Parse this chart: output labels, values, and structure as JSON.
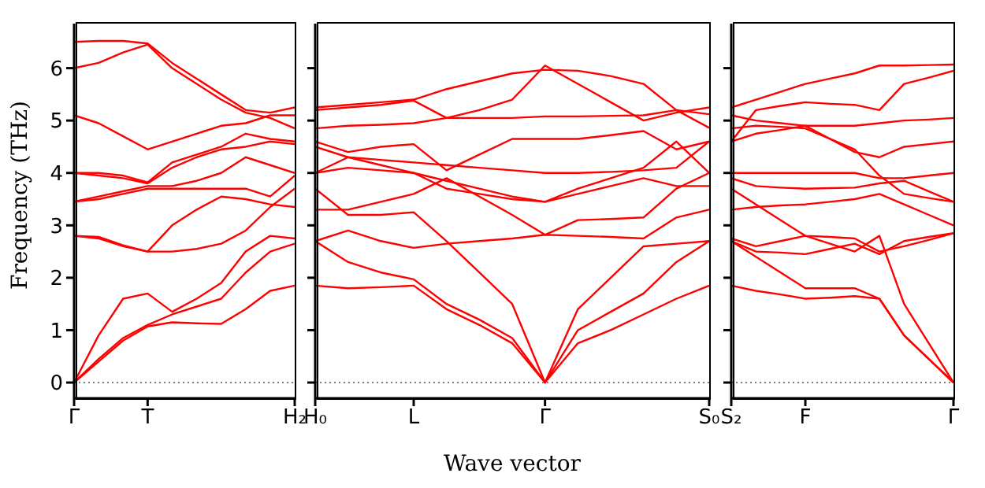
{
  "chart_data": [
    {
      "type": "line",
      "ylabel": "Frequency (THz)",
      "categories": [
        "Γ",
        null,
        null,
        "T",
        null,
        null,
        null,
        null,
        null,
        "H₂"
      ],
      "ylim": [
        -0.3,
        6.85
      ],
      "yticks": [
        0,
        1,
        2,
        3,
        4,
        5,
        6
      ],
      "grid": false,
      "legend": false,
      "marker": "none",
      "line_style": "solid",
      "ref_lines": [
        {
          "axis": "y",
          "value": 0,
          "color": "#555555",
          "line_style": "dotted"
        }
      ],
      "series": [
        {
          "color": "#ff0000",
          "values": [
            0,
            0.4,
            0.8,
            1.07,
            1.15,
            1.13,
            1.12,
            1.4,
            1.75,
            1.85
          ]
        },
        {
          "color": "#ff0000",
          "values": [
            0,
            0.45,
            0.85,
            1.1,
            1.3,
            1.45,
            1.6,
            2.1,
            2.5,
            2.65
          ]
        },
        {
          "color": "#ff0000",
          "values": [
            0,
            0.9,
            1.6,
            1.7,
            1.35,
            1.6,
            1.9,
            2.5,
            2.8,
            2.75
          ]
        },
        {
          "color": "#ff0000",
          "values": [
            2.8,
            2.75,
            2.6,
            2.5,
            2.5,
            2.55,
            2.65,
            2.9,
            3.35,
            3.7
          ]
        },
        {
          "color": "#ff0000",
          "values": [
            2.8,
            2.78,
            2.62,
            2.5,
            3.0,
            3.3,
            3.55,
            3.5,
            3.4,
            3.35
          ]
        },
        {
          "color": "#ff0000",
          "values": [
            3.45,
            3.5,
            3.6,
            3.7,
            3.7,
            3.7,
            3.7,
            3.7,
            3.55,
            3.95
          ]
        },
        {
          "color": "#ff0000",
          "values": [
            3.45,
            3.55,
            3.65,
            3.75,
            3.75,
            3.85,
            4.0,
            4.3,
            4.15,
            4.0
          ]
        },
        {
          "color": "#ff0000",
          "values": [
            4.0,
            3.95,
            3.9,
            3.8,
            4.1,
            4.3,
            4.45,
            4.5,
            4.6,
            4.55
          ]
        },
        {
          "color": "#ff0000",
          "values": [
            4.0,
            4.0,
            3.95,
            3.82,
            4.2,
            4.35,
            4.5,
            4.75,
            4.65,
            4.6
          ]
        },
        {
          "color": "#ff0000",
          "values": [
            5.1,
            4.95,
            4.7,
            4.45,
            4.6,
            4.75,
            4.9,
            4.95,
            5.1,
            5.1
          ]
        },
        {
          "color": "#ff0000",
          "values": [
            6.0,
            6.1,
            6.3,
            6.45,
            6.0,
            5.7,
            5.4,
            5.15,
            5.05,
            4.85
          ]
        },
        {
          "color": "#ff0000",
          "values": [
            6.5,
            6.52,
            6.52,
            6.47,
            6.1,
            5.8,
            5.5,
            5.2,
            5.15,
            5.25
          ]
        }
      ]
    },
    {
      "type": "line",
      "xlabel": "Wave vector",
      "categories": [
        "H₀",
        null,
        null,
        "L",
        null,
        null,
        null,
        "Γ",
        null,
        null,
        null,
        null,
        "S₀"
      ],
      "ylim": [
        -0.3,
        6.85
      ],
      "yticks": [
        {
          "value": 0,
          "label": null
        },
        {
          "value": 1,
          "label": null
        },
        {
          "value": 2,
          "label": null
        },
        {
          "value": 3,
          "label": null
        },
        {
          "value": 4,
          "label": null
        },
        {
          "value": 5,
          "label": null
        },
        {
          "value": 6,
          "label": null
        }
      ],
      "tick_labels": "x",
      "grid": false,
      "legend": false,
      "marker": "none",
      "line_style": "solid",
      "ref_lines": [
        {
          "axis": "y",
          "value": 0,
          "color": "#555555",
          "line_style": "dotted"
        }
      ],
      "series": [
        {
          "color": "#ff0000",
          "values": [
            1.85,
            1.8,
            1.82,
            1.85,
            1.4,
            1.1,
            0.75,
            0,
            0.75,
            1.0,
            1.3,
            1.6,
            1.85
          ]
        },
        {
          "color": "#ff0000",
          "values": [
            2.7,
            2.3,
            2.1,
            1.97,
            1.5,
            1.2,
            0.85,
            0,
            1.0,
            1.35,
            1.7,
            2.3,
            2.7
          ]
        },
        {
          "color": "#ff0000",
          "values": [
            3.7,
            3.2,
            3.2,
            3.25,
            2.7,
            2.1,
            1.5,
            0,
            1.4,
            2.0,
            2.6,
            2.65,
            2.7
          ]
        },
        {
          "color": "#ff0000",
          "values": [
            2.7,
            2.9,
            2.7,
            2.57,
            2.65,
            2.7,
            2.75,
            2.82,
            2.8,
            2.78,
            2.75,
            3.15,
            3.3
          ]
        },
        {
          "color": "#ff0000",
          "values": [
            3.3,
            3.3,
            3.45,
            3.6,
            3.9,
            3.55,
            3.2,
            2.82,
            3.1,
            3.12,
            3.15,
            3.7,
            4.0
          ]
        },
        {
          "color": "#ff0000",
          "values": [
            4.0,
            4.3,
            4.15,
            4.0,
            3.7,
            3.6,
            3.5,
            3.45,
            3.7,
            3.9,
            4.1,
            4.6,
            4.0
          ]
        },
        {
          "color": "#ff0000",
          "values": [
            4.0,
            4.1,
            4.05,
            4.0,
            3.85,
            3.7,
            3.55,
            3.45,
            3.6,
            3.75,
            3.9,
            3.75,
            3.75
          ]
        },
        {
          "color": "#ff0000",
          "values": [
            4.5,
            4.3,
            4.25,
            4.2,
            4.15,
            4.1,
            4.05,
            4.0,
            4.0,
            4.02,
            4.05,
            4.1,
            4.6
          ]
        },
        {
          "color": "#ff0000",
          "values": [
            4.6,
            4.4,
            4.5,
            4.55,
            4.05,
            4.35,
            4.65,
            4.65,
            4.65,
            4.72,
            4.8,
            4.45,
            4.6
          ]
        },
        {
          "color": "#ff0000",
          "values": [
            4.85,
            4.9,
            4.92,
            4.95,
            5.05,
            5.05,
            5.05,
            5.08,
            5.08,
            5.09,
            5.1,
            5.2,
            5.12
          ]
        },
        {
          "color": "#ff0000",
          "values": [
            5.2,
            5.25,
            5.3,
            5.38,
            5.05,
            5.2,
            5.4,
            6.05,
            5.7,
            5.35,
            5.0,
            5.15,
            5.25
          ]
        },
        {
          "color": "#ff0000",
          "values": [
            5.25,
            5.3,
            5.35,
            5.4,
            5.6,
            5.75,
            5.9,
            5.97,
            5.95,
            5.85,
            5.7,
            5.2,
            4.86
          ]
        }
      ]
    },
    {
      "type": "line",
      "categories": [
        "S₂",
        null,
        null,
        "F",
        null,
        null,
        null,
        null,
        null,
        "Γ"
      ],
      "ylim": [
        -0.3,
        6.85
      ],
      "yticks": [
        {
          "value": 0,
          "label": null
        },
        {
          "value": 1,
          "label": null
        },
        {
          "value": 2,
          "label": null
        },
        {
          "value": 3,
          "label": null
        },
        {
          "value": 4,
          "label": null
        },
        {
          "value": 5,
          "label": null
        },
        {
          "value": 6,
          "label": null
        }
      ],
      "tick_labels": "x",
      "grid": false,
      "legend": false,
      "marker": "none",
      "line_style": "solid",
      "ref_lines": [
        {
          "axis": "y",
          "value": 0,
          "color": "#555555",
          "line_style": "dotted"
        }
      ],
      "series": [
        {
          "color": "#ff0000",
          "values": [
            1.85,
            1.75,
            1.68,
            1.6,
            1.62,
            1.65,
            1.6,
            0.9,
            0.45,
            0
          ]
        },
        {
          "color": "#ff0000",
          "values": [
            2.7,
            2.4,
            2.1,
            1.8,
            1.8,
            1.8,
            1.6,
            0.9,
            0.45,
            0
          ]
        },
        {
          "color": "#ff0000",
          "values": [
            2.75,
            2.6,
            2.7,
            2.8,
            2.65,
            2.5,
            2.8,
            1.5,
            0.75,
            0
          ]
        },
        {
          "color": "#ff0000",
          "values": [
            2.7,
            2.5,
            2.48,
            2.45,
            2.55,
            2.65,
            2.45,
            2.7,
            2.78,
            2.85
          ]
        },
        {
          "color": "#ff0000",
          "values": [
            3.7,
            3.4,
            3.1,
            2.8,
            2.78,
            2.75,
            2.5,
            2.6,
            2.72,
            2.85
          ]
        },
        {
          "color": "#ff0000",
          "values": [
            3.3,
            3.35,
            3.38,
            3.4,
            3.45,
            3.5,
            3.6,
            3.4,
            3.2,
            3.0
          ]
        },
        {
          "color": "#ff0000",
          "values": [
            3.9,
            3.75,
            3.72,
            3.7,
            3.71,
            3.72,
            3.8,
            3.85,
            3.65,
            3.45
          ]
        },
        {
          "color": "#ff0000",
          "values": [
            4.0,
            4.0,
            4.0,
            4.0,
            4.0,
            4.0,
            3.9,
            3.9,
            3.95,
            4.0
          ]
        },
        {
          "color": "#ff0000",
          "values": [
            4.85,
            4.9,
            4.88,
            4.85,
            4.65,
            4.45,
            3.95,
            3.6,
            3.52,
            3.45
          ]
        },
        {
          "color": "#ff0000",
          "values": [
            4.6,
            4.75,
            4.82,
            4.9,
            4.9,
            4.9,
            4.95,
            5.0,
            5.02,
            5.05
          ]
        },
        {
          "color": "#ff0000",
          "values": [
            5.1,
            5.0,
            4.95,
            4.9,
            4.65,
            4.4,
            4.3,
            4.5,
            4.55,
            4.6
          ]
        },
        {
          "color": "#ff0000",
          "values": [
            4.6,
            5.2,
            5.28,
            5.35,
            5.32,
            5.3,
            5.2,
            5.7,
            5.82,
            5.95
          ]
        },
        {
          "color": "#ff0000",
          "values": [
            5.25,
            5.4,
            5.55,
            5.7,
            5.8,
            5.9,
            6.05,
            6.05,
            6.06,
            6.07
          ]
        }
      ]
    }
  ]
}
